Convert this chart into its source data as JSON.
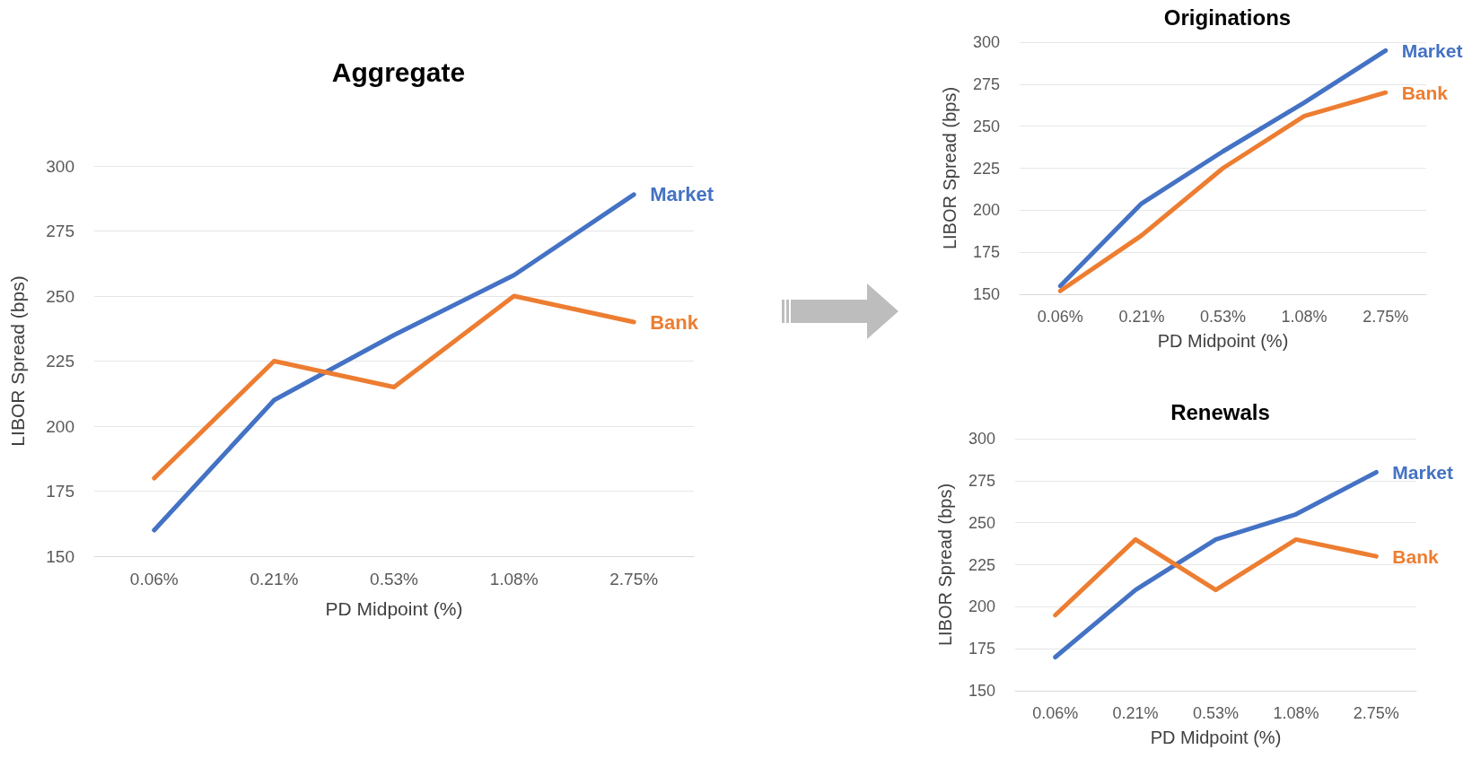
{
  "chart_data": [
    {
      "type": "line",
      "title": "Aggregate",
      "xlabel": "PD Midpoint (%)",
      "ylabel": "LIBOR Spread (bps)",
      "categories": [
        "0.06%",
        "0.21%",
        "0.53%",
        "1.08%",
        "2.75%"
      ],
      "series": [
        {
          "name": "Market",
          "color": "#4472c4",
          "values": [
            160,
            210,
            235,
            258,
            289
          ]
        },
        {
          "name": "Bank",
          "color": "#ed7d31",
          "values": [
            180,
            225,
            215,
            250,
            240
          ]
        }
      ],
      "ylim": [
        150,
        300
      ],
      "yticks": [
        150,
        175,
        200,
        225,
        250,
        275,
        300
      ],
      "grid": "y",
      "legend": false,
      "marker": "none",
      "line_style": "solid"
    },
    {
      "type": "line",
      "title": "Originations",
      "xlabel": "PD Midpoint (%)",
      "ylabel": "LIBOR Spread (bps)",
      "categories": [
        "0.06%",
        "0.21%",
        "0.53%",
        "1.08%",
        "2.75%"
      ],
      "series": [
        {
          "name": "Market",
          "color": "#4472c4",
          "values": [
            155,
            204,
            235,
            264,
            295
          ]
        },
        {
          "name": "Bank",
          "color": "#ed7d31",
          "values": [
            152,
            185,
            225,
            256,
            270
          ]
        }
      ],
      "ylim": [
        150,
        300
      ],
      "yticks": [
        150,
        175,
        200,
        225,
        250,
        275,
        300
      ],
      "grid": "y",
      "legend": false,
      "marker": "none",
      "line_style": "solid"
    },
    {
      "type": "line",
      "title": "Renewals",
      "xlabel": "PD Midpoint (%)",
      "ylabel": "LIBOR Spread (bps)",
      "categories": [
        "0.06%",
        "0.21%",
        "0.53%",
        "1.08%",
        "2.75%"
      ],
      "series": [
        {
          "name": "Market",
          "color": "#4472c4",
          "values": [
            170,
            210,
            240,
            255,
            280
          ]
        },
        {
          "name": "Bank",
          "color": "#ed7d31",
          "values": [
            195,
            240,
            210,
            240,
            230
          ]
        }
      ],
      "ylim": [
        150,
        300
      ],
      "yticks": [
        150,
        175,
        200,
        225,
        250,
        275,
        300
      ],
      "grid": "y",
      "legend": false,
      "marker": "none",
      "line_style": "solid"
    }
  ]
}
